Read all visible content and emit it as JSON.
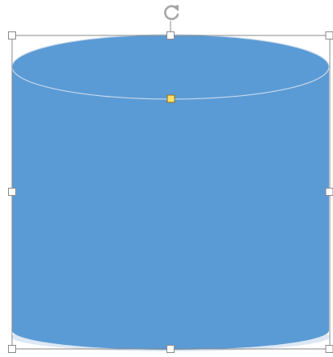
{
  "shape": {
    "type": "can",
    "fill_color": "#5b9bd5",
    "edge_color": "#c9d9ec",
    "selected": true
  },
  "selection": {
    "frame_color": "#8a8a8a",
    "handle_fill": "#ffffff",
    "handle_border": "#8a8a8a",
    "adjust_handle_fill": "#ffe066",
    "adjust_handle_border": "#8a6d1a",
    "rotate_icon": "rotate-arrow-icon",
    "rotate_color": "#a6a6a6"
  }
}
